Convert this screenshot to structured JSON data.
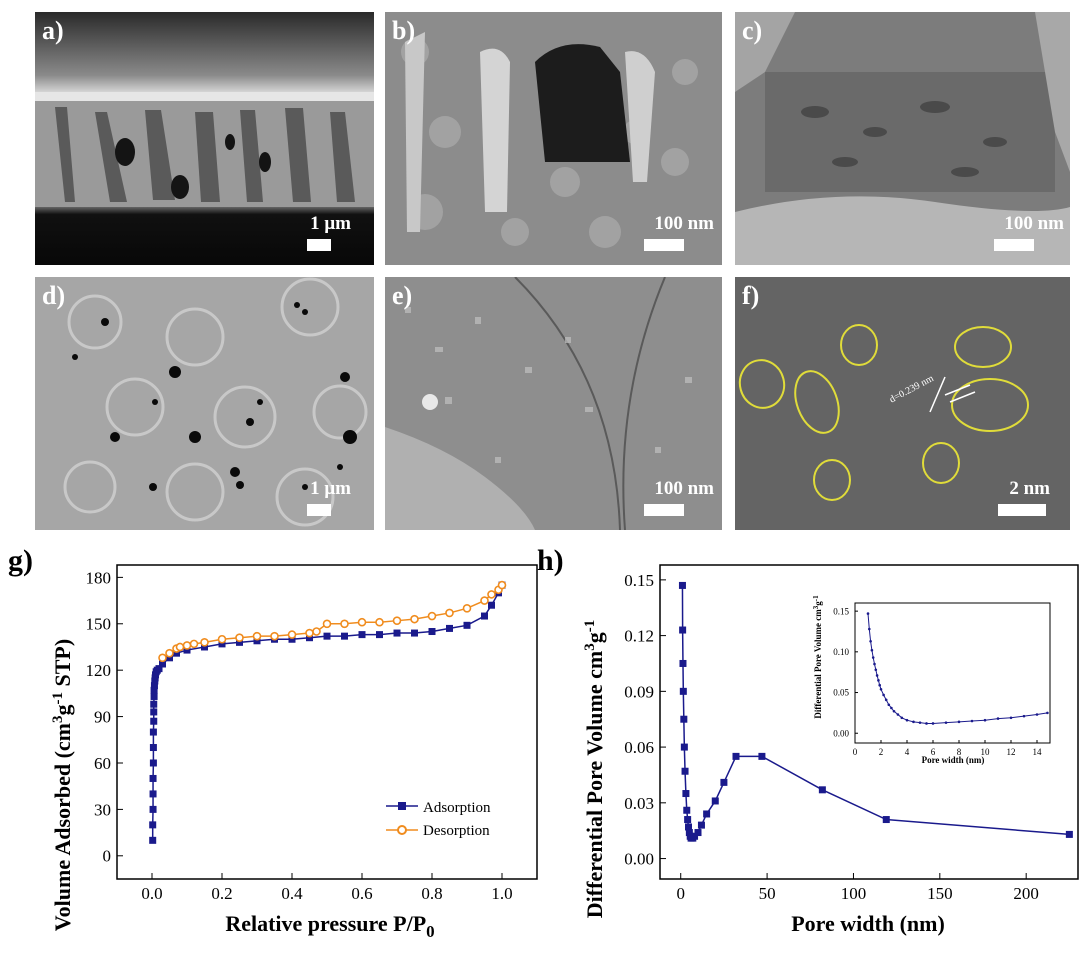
{
  "panels": {
    "a": {
      "label": "a)",
      "scale": "1 μm"
    },
    "b": {
      "label": "b)",
      "scale": "100 nm"
    },
    "c": {
      "label": "c)",
      "scale": "100 nm"
    },
    "d": {
      "label": "d)",
      "scale": "1 μm"
    },
    "e": {
      "label": "e)",
      "scale": "100 nm"
    },
    "f": {
      "label": "f)",
      "scale": "2 nm",
      "d_spacing": "d=0.239 nm"
    }
  },
  "figure_labels": {
    "g": "g)",
    "h": "h)"
  },
  "colors": {
    "adsorption": "#1a1a8c",
    "desorption": "#f08c1e",
    "pore_line": "#1a1a8c"
  },
  "chart_data": [
    {
      "type": "line",
      "panel": "g",
      "xlabel": "Relative pressure P/P0",
      "ylabel": "Volume Adsorbed (cm3g-1 STP)",
      "xlim": [
        -0.1,
        1.1
      ],
      "ylim": [
        -15,
        188
      ],
      "xticks": [
        0.0,
        0.2,
        0.4,
        0.6,
        0.8,
        1.0
      ],
      "yticks": [
        0,
        30,
        60,
        90,
        120,
        150,
        180
      ],
      "legend": "bottom-right",
      "grid": false,
      "series": [
        {
          "name": "Adsorption",
          "marker": "square",
          "x": [
            0.002,
            0.002,
            0.003,
            0.003,
            0.003,
            0.004,
            0.004,
            0.004,
            0.005,
            0.005,
            0.005,
            0.006,
            0.006,
            0.007,
            0.008,
            0.009,
            0.01,
            0.012,
            0.015,
            0.02,
            0.03,
            0.05,
            0.07,
            0.1,
            0.15,
            0.2,
            0.25,
            0.3,
            0.35,
            0.4,
            0.45,
            0.5,
            0.55,
            0.6,
            0.65,
            0.7,
            0.75,
            0.8,
            0.85,
            0.9,
            0.95,
            0.97,
            0.99,
            1.0
          ],
          "y": [
            10,
            20,
            30,
            40,
            50,
            60,
            70,
            80,
            87,
            93,
            98,
            103,
            107,
            110,
            113,
            115,
            117,
            119,
            120,
            121,
            124,
            128,
            131,
            133,
            135,
            137,
            138,
            139,
            140,
            140,
            141,
            142,
            142,
            143,
            143,
            144,
            144,
            145,
            147,
            149,
            155,
            162,
            170,
            175
          ]
        },
        {
          "name": "Desorption",
          "marker": "circle",
          "x": [
            0.03,
            0.05,
            0.07,
            0.08,
            0.1,
            0.12,
            0.15,
            0.2,
            0.25,
            0.3,
            0.35,
            0.4,
            0.45,
            0.47,
            0.5,
            0.55,
            0.6,
            0.65,
            0.7,
            0.75,
            0.8,
            0.85,
            0.9,
            0.95,
            0.97,
            0.99,
            1.0
          ],
          "y": [
            128,
            131,
            134,
            135,
            136,
            137,
            138,
            140,
            141,
            142,
            142,
            143,
            144,
            145,
            150,
            150,
            151,
            151,
            152,
            153,
            155,
            157,
            160,
            165,
            169,
            172,
            175
          ]
        }
      ]
    },
    {
      "type": "line",
      "panel": "h",
      "xlabel": "Pore width (nm)",
      "ylabel": "Differential Pore Volume cm3g-1",
      "xlim": [
        -12,
        230
      ],
      "ylim": [
        -0.011,
        0.158
      ],
      "xticks": [
        0,
        50,
        100,
        150,
        200
      ],
      "yticks": [
        0.0,
        0.03,
        0.06,
        0.09,
        0.12,
        0.15
      ],
      "series": [
        {
          "name": "",
          "marker": "square",
          "x": [
            1,
            1.1,
            1.3,
            1.5,
            1.8,
            2.1,
            2.5,
            3,
            3.5,
            4,
            4.5,
            5,
            5.5,
            6,
            7,
            8,
            10,
            12,
            15,
            20,
            25,
            32,
            47,
            82,
            119,
            225
          ],
          "y": [
            0.147,
            0.123,
            0.105,
            0.09,
            0.075,
            0.06,
            0.047,
            0.035,
            0.026,
            0.021,
            0.017,
            0.014,
            0.012,
            0.011,
            0.011,
            0.012,
            0.014,
            0.018,
            0.024,
            0.031,
            0.041,
            0.055,
            0.055,
            0.037,
            0.021,
            0.013
          ]
        }
      ]
    },
    {
      "type": "line",
      "panel": "h-inset",
      "xlabel": "Pore width (nm)",
      "ylabel": "Differential Pore Volume cm3g-1",
      "xlim": [
        0,
        15
      ],
      "ylim": [
        -0.012,
        0.16
      ],
      "xticks": [
        0,
        2,
        4,
        6,
        8,
        10,
        12,
        14
      ],
      "yticks": [
        0.0,
        0.05,
        0.1,
        0.15
      ],
      "series": [
        {
          "name": "",
          "marker": "dot",
          "x": [
            1,
            1.1,
            1.2,
            1.3,
            1.4,
            1.5,
            1.6,
            1.7,
            1.8,
            1.9,
            2,
            2.2,
            2.4,
            2.6,
            2.8,
            3,
            3.3,
            3.6,
            4,
            4.5,
            5,
            5.5,
            6,
            7,
            8,
            9,
            10,
            11,
            12,
            13,
            14,
            14.8
          ],
          "y": [
            0.147,
            0.128,
            0.113,
            0.102,
            0.093,
            0.085,
            0.078,
            0.071,
            0.065,
            0.059,
            0.054,
            0.047,
            0.041,
            0.035,
            0.031,
            0.027,
            0.023,
            0.019,
            0.016,
            0.014,
            0.013,
            0.012,
            0.012,
            0.013,
            0.014,
            0.015,
            0.016,
            0.018,
            0.019,
            0.021,
            0.023,
            0.025
          ]
        }
      ]
    }
  ]
}
